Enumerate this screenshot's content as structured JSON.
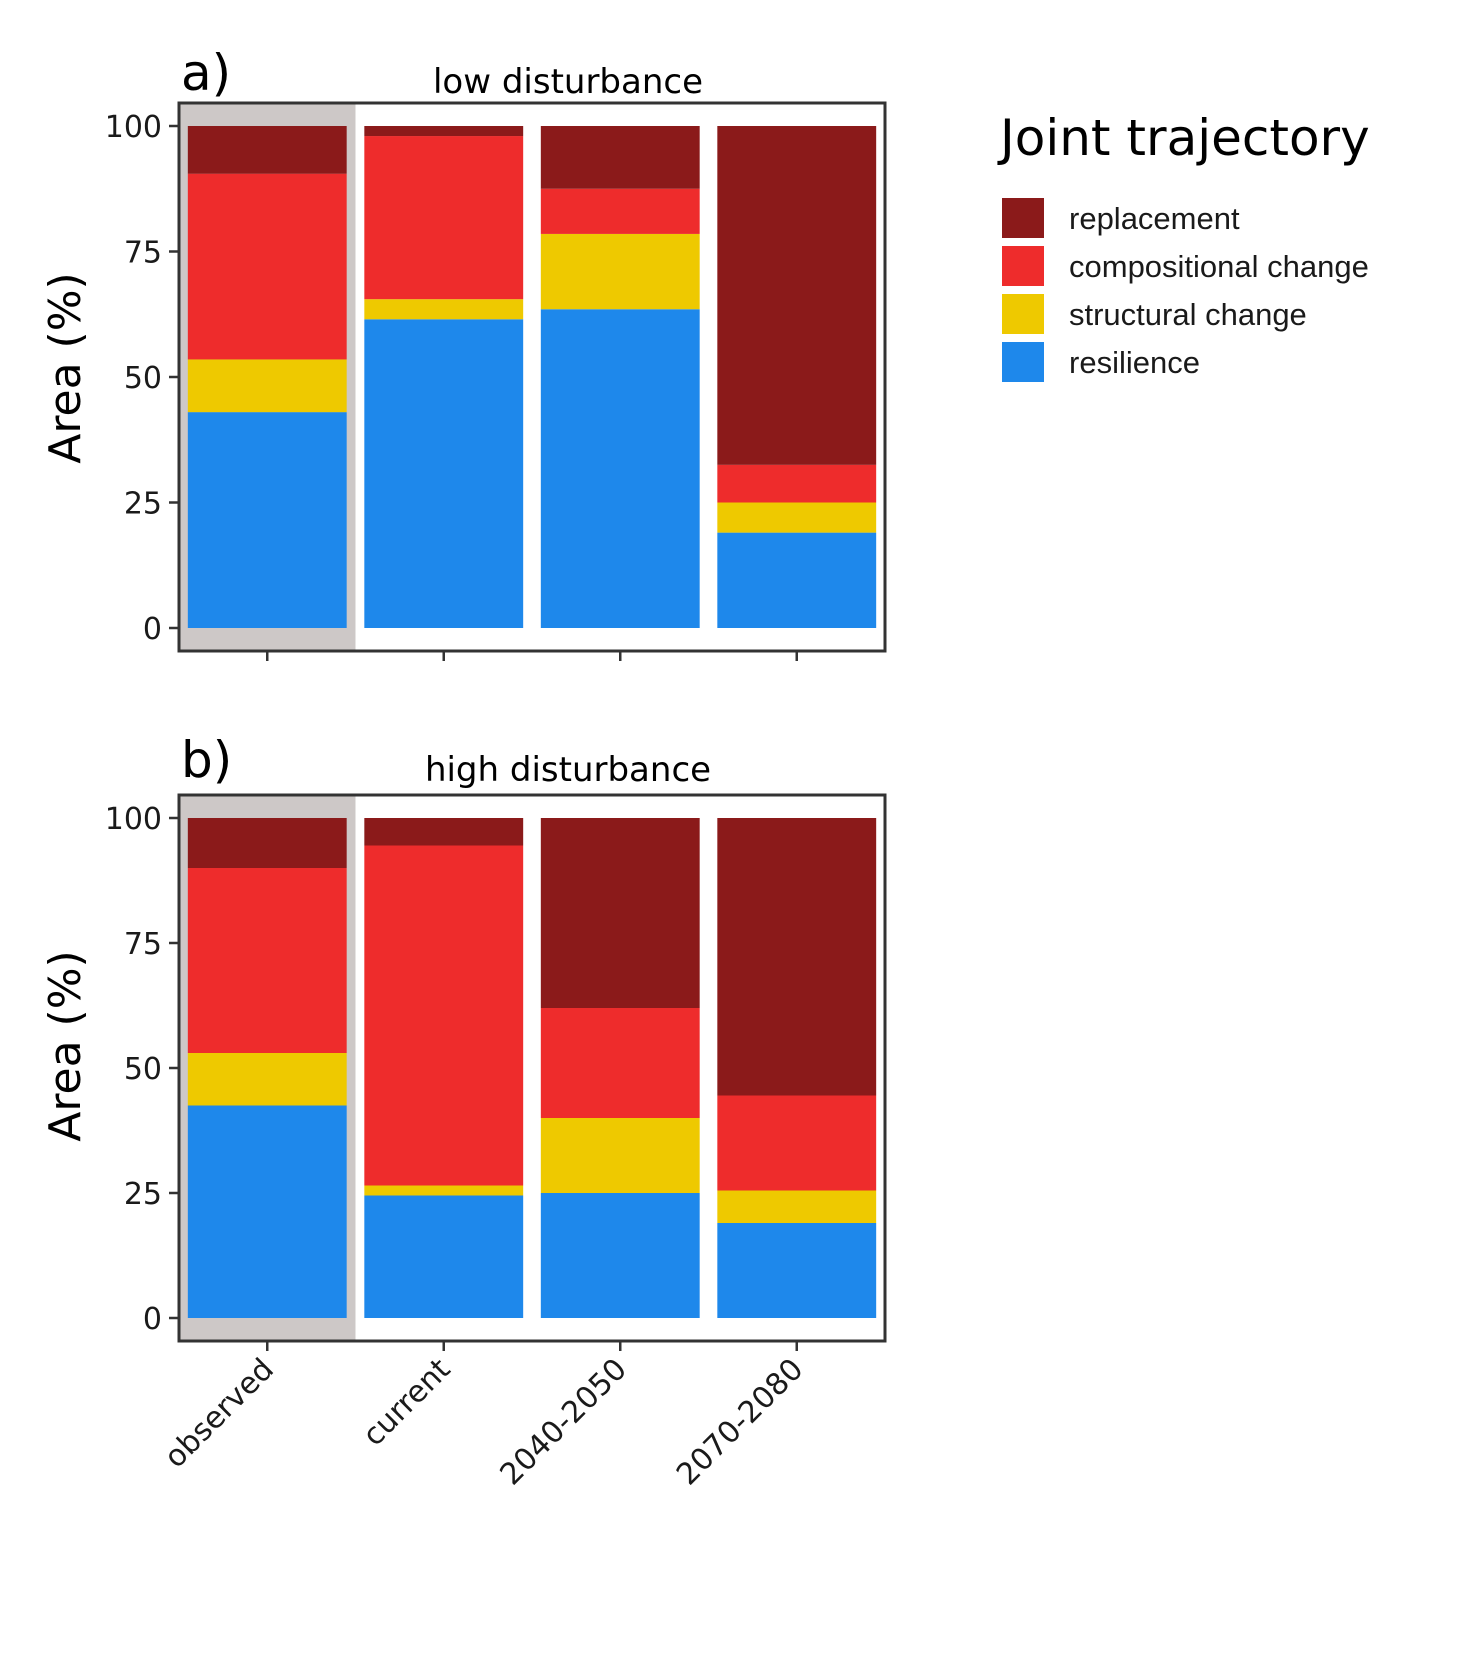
{
  "colors": {
    "replacement": "#8B1A1A",
    "compositional change": "#EE2C2C",
    "structural change": "#EEC900",
    "resilience": "#1E88EB",
    "observed_background": "#CDC8C7",
    "panel_border": "#333333"
  },
  "legend": {
    "title": "Joint trajectory",
    "position": "right",
    "items": [
      "replacement",
      "compositional change",
      "structural change",
      "resilience"
    ]
  },
  "chart_data": [
    {
      "type": "bar",
      "stacked": true,
      "panel_tag": "a)",
      "title": "low disturbance",
      "xlabel": "",
      "ylabel": "Area (%)",
      "ylim": [
        0,
        100
      ],
      "yticks": [
        0,
        25,
        50,
        75,
        100
      ],
      "categories": [
        "observed",
        "current",
        "2040-2050",
        "2070-2080"
      ],
      "highlighted_category": "observed",
      "series": [
        {
          "name": "resilience",
          "values": [
            43,
            61.5,
            63.5,
            19
          ]
        },
        {
          "name": "structural change",
          "values": [
            10.5,
            4,
            15,
            6
          ]
        },
        {
          "name": "compositional change",
          "values": [
            37,
            32.5,
            9,
            7.5
          ]
        },
        {
          "name": "replacement",
          "values": [
            9.5,
            2,
            12.5,
            67.5
          ]
        }
      ]
    },
    {
      "type": "bar",
      "stacked": true,
      "panel_tag": "b)",
      "title": "high disturbance",
      "xlabel": "",
      "ylabel": "Area (%)",
      "ylim": [
        0,
        100
      ],
      "yticks": [
        0,
        25,
        50,
        75,
        100
      ],
      "categories": [
        "observed",
        "current",
        "2040-2050",
        "2070-2080"
      ],
      "highlighted_category": "observed",
      "series": [
        {
          "name": "resilience",
          "values": [
            42.5,
            24.5,
            25,
            19
          ]
        },
        {
          "name": "structural change",
          "values": [
            10.5,
            2,
            15,
            6.5
          ]
        },
        {
          "name": "compositional change",
          "values": [
            37,
            68,
            22,
            19
          ]
        },
        {
          "name": "replacement",
          "values": [
            10,
            5.5,
            38,
            55.5
          ]
        }
      ]
    }
  ]
}
